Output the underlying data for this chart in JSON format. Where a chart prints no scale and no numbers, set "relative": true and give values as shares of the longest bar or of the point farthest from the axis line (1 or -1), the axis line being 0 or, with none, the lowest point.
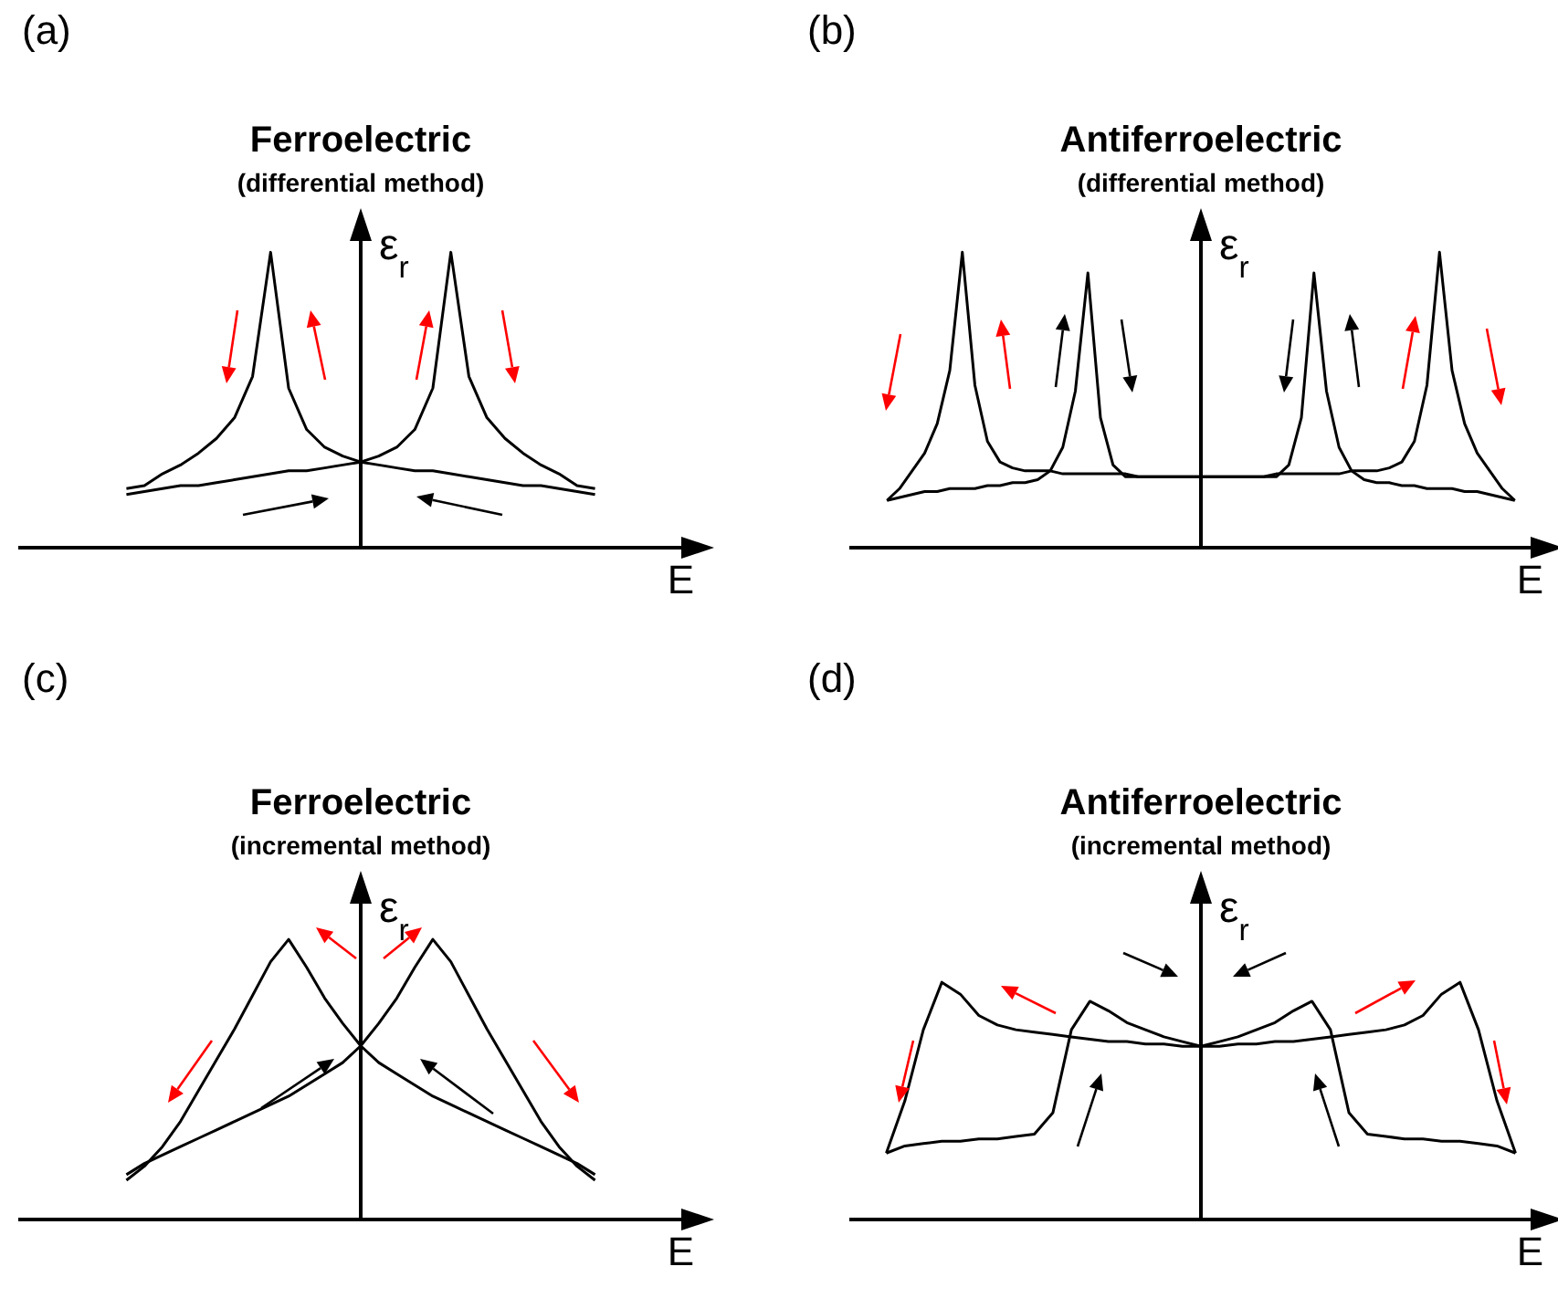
{
  "chart_data": [
    {
      "type": "line",
      "title": "Ferroelectric",
      "subtitle": "(differential method)",
      "xlabel": "E",
      "ylabel": "ε$_{r}$",
      "annotations": [
        "(a)"
      ],
      "relative": true,
      "categories": [
        null,
        null,
        null,
        null,
        null,
        null,
        null,
        null,
        null,
        null,
        null,
        null,
        null,
        null,
        null,
        null,
        null,
        null,
        null,
        null,
        null,
        null,
        null,
        null,
        null,
        null,
        null,
        null,
        null,
        null,
        null,
        null,
        null,
        null,
        null,
        null,
        null,
        null,
        null
      ],
      "series": [
        {
          "color": "#000000",
          "values": [
            null,
            null,
            null,
            null,
            null,
            null,
            0.18,
            0.19,
            0.2,
            0.21,
            0.21,
            0.22,
            0.23,
            0.24,
            0.25,
            0.26,
            0.26,
            0.27,
            0.28,
            0.29,
            0.31,
            0.34,
            0.4,
            0.54,
            1,
            0.58,
            0.44,
            0.37,
            0.32,
            0.28,
            0.25,
            0.21,
            0.2,
            null,
            null,
            null,
            null,
            null,
            null
          ]
        },
        {
          "color": "#000000",
          "values": [
            null,
            null,
            null,
            null,
            null,
            null,
            0.2,
            0.21,
            0.25,
            0.28,
            0.32,
            0.37,
            0.44,
            0.58,
            1,
            0.54,
            0.4,
            0.34,
            0.31,
            0.29,
            0.28,
            0.27,
            0.26,
            0.26,
            0.25,
            0.24,
            0.23,
            0.22,
            0.21,
            0.21,
            0.2,
            0.19,
            0.18,
            null,
            null,
            null,
            null,
            null,
            null
          ]
        }
      ]
    },
    {
      "type": "line",
      "title": "Antiferroelectric",
      "subtitle": "(differential method)",
      "xlabel": "E",
      "ylabel": "ε$_{r}$",
      "annotations": [
        "(b)"
      ],
      "relative": true,
      "categories": [
        null,
        null,
        null,
        null,
        null,
        null,
        null,
        null,
        null,
        null,
        null,
        null,
        null,
        null,
        null,
        null,
        null,
        null,
        null,
        null,
        null,
        null,
        null,
        null,
        null,
        null,
        null,
        null,
        null,
        null,
        null,
        null,
        null,
        null,
        null,
        null,
        null,
        null,
        null,
        null,
        null,
        null,
        null,
        null,
        null,
        null,
        null,
        null,
        null,
        null,
        null,
        null,
        null,
        null,
        null,
        null,
        null
      ],
      "series": [
        {
          "color": "#000000",
          "values": [
            null,
            null,
            null,
            0.16,
            0.2,
            0.26,
            0.32,
            0.42,
            0.6,
            1,
            0.55,
            0.36,
            0.29,
            0.27,
            0.26,
            0.26,
            0.26,
            0.25,
            0.25,
            0.25,
            0.25,
            0.25,
            0.25,
            0.24,
            0.24,
            0.24,
            0.24,
            0.24,
            0.24,
            0.24,
            0.24,
            0.24,
            0.24,
            0.24,
            0.24,
            0.28,
            0.44,
            0.93,
            0.53,
            0.34,
            0.26,
            0.23,
            0.22,
            0.22,
            0.21,
            0.21,
            0.2,
            0.2,
            0.2,
            0.19,
            0.19,
            0.18,
            0.17,
            0.16,
            null,
            null,
            null
          ]
        },
        {
          "color": "#000000",
          "values": [
            null,
            null,
            null,
            0.16,
            0.17,
            0.18,
            0.19,
            0.19,
            0.2,
            0.2,
            0.2,
            0.21,
            0.21,
            0.22,
            0.22,
            0.23,
            0.26,
            0.34,
            0.53,
            0.93,
            0.44,
            0.28,
            0.24,
            0.24,
            0.24,
            0.24,
            0.24,
            0.24,
            0.24,
            0.24,
            0.24,
            0.24,
            0.24,
            0.24,
            0.25,
            0.25,
            0.25,
            0.25,
            0.25,
            0.25,
            0.26,
            0.26,
            0.26,
            0.27,
            0.29,
            0.36,
            0.55,
            1,
            0.6,
            0.42,
            0.32,
            0.26,
            0.2,
            0.16,
            null,
            null,
            null
          ]
        }
      ]
    },
    {
      "type": "line",
      "title": "Ferroelectric",
      "subtitle": "(incremental method)",
      "xlabel": "E",
      "ylabel": "ε$_{r}$",
      "annotations": [
        "(c)"
      ],
      "relative": true,
      "categories": [
        null,
        null,
        null,
        null,
        null,
        null,
        null,
        null,
        null,
        null,
        null,
        null,
        null,
        null,
        null,
        null,
        null,
        null,
        null,
        null,
        null,
        null,
        null,
        null,
        null,
        null,
        null,
        null,
        null,
        null,
        null,
        null,
        null,
        null,
        null,
        null,
        null,
        null,
        null
      ],
      "series": [
        {
          "color": "#000000",
          "values": [
            null,
            null,
            null,
            null,
            null,
            null,
            0.16,
            0.2,
            0.23,
            0.26,
            0.29,
            0.32,
            0.35,
            0.38,
            0.41,
            0.44,
            0.48,
            0.52,
            0.56,
            0.62,
            0.7,
            0.79,
            0.9,
            1,
            0.92,
            0.8,
            0.68,
            0.57,
            0.46,
            0.35,
            0.26,
            0.19,
            0.14,
            null,
            null,
            null,
            null,
            null,
            null
          ]
        },
        {
          "color": "#000000",
          "values": [
            null,
            null,
            null,
            null,
            null,
            null,
            0.14,
            0.19,
            0.26,
            0.35,
            0.46,
            0.57,
            0.68,
            0.8,
            0.92,
            1,
            0.9,
            0.79,
            0.7,
            0.62,
            0.56,
            0.52,
            0.48,
            0.44,
            0.41,
            0.38,
            0.35,
            0.32,
            0.29,
            0.26,
            0.23,
            0.2,
            0.16,
            null,
            null,
            null,
            null,
            null,
            null
          ]
        }
      ]
    },
    {
      "type": "line",
      "title": "Antiferroelectric",
      "subtitle": "(incremental method)",
      "xlabel": "E",
      "ylabel": "ε$_{r}$",
      "annotations": [
        "(d)"
      ],
      "relative": true,
      "categories": [
        null,
        null,
        null,
        null,
        null,
        null,
        null,
        null,
        null,
        null,
        null,
        null,
        null,
        null,
        null,
        null,
        null,
        null,
        null,
        null,
        null,
        null,
        null,
        null,
        null,
        null,
        null,
        null,
        null,
        null,
        null,
        null,
        null,
        null,
        null,
        null,
        null,
        null,
        null
      ],
      "series": [
        {
          "color": "#000000",
          "values": [
            null,
            null,
            0.28,
            0.31,
            0.32,
            0.33,
            0.33,
            0.34,
            0.34,
            0.35,
            0.36,
            0.45,
            0.8,
            0.92,
            0.88,
            0.83,
            0.8,
            0.77,
            0.75,
            0.73,
            0.73,
            0.74,
            0.74,
            0.75,
            0.75,
            0.76,
            0.77,
            0.78,
            0.79,
            0.8,
            0.82,
            0.86,
            0.95,
            1,
            0.8,
            0.5,
            0.28,
            null,
            null
          ]
        },
        {
          "color": "#000000",
          "values": [
            null,
            null,
            0.28,
            0.5,
            0.8,
            1,
            0.95,
            0.86,
            0.82,
            0.8,
            0.79,
            0.78,
            0.77,
            0.76,
            0.75,
            0.75,
            0.74,
            0.74,
            0.73,
            0.73,
            0.75,
            0.77,
            0.8,
            0.83,
            0.88,
            0.92,
            0.8,
            0.45,
            0.36,
            0.35,
            0.34,
            0.34,
            0.33,
            0.33,
            0.32,
            0.31,
            0.28,
            null,
            null
          ]
        }
      ]
    }
  ]
}
